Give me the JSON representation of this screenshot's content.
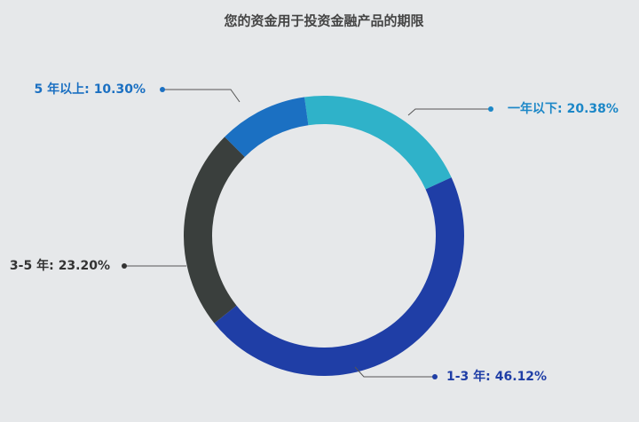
{
  "chart_data": {
    "type": "donut",
    "title": "您的资金用于投资金融产品的期限",
    "categories": [
      "一年以下:",
      "1-3 年:",
      "3-5 年:",
      "5 年以上:"
    ],
    "values": [
      20.38,
      46.12,
      23.2,
      10.3
    ],
    "value_labels": [
      "20.38%",
      "46.12%",
      "23.20%",
      "10.30%"
    ],
    "colors": [
      "#2fb2c9",
      "#1f3ea6",
      "#3a3f3d",
      "#1b70c2"
    ]
  }
}
